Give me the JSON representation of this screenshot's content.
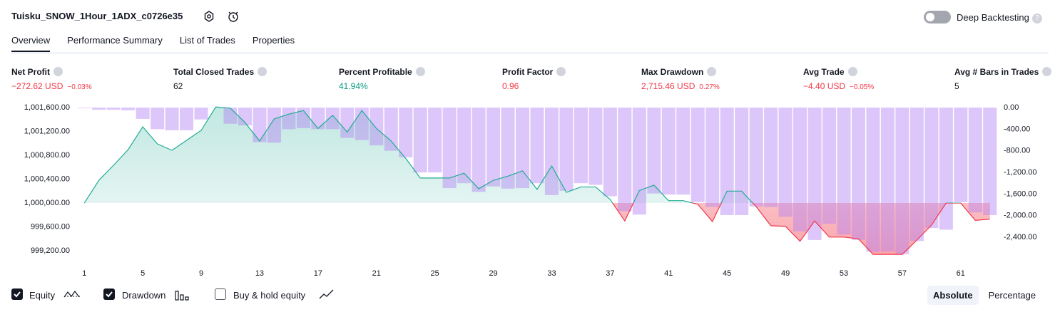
{
  "header": {
    "title": "Tuisku_SNOW_1Hour_1ADX_c0726e35",
    "deep_backtesting": "Deep Backtesting"
  },
  "tabs": [
    "Overview",
    "Performance Summary",
    "List of Trades",
    "Properties"
  ],
  "metrics": [
    {
      "label": "Net Profit",
      "value": "−272.62 USD",
      "change": "−0.03%",
      "color": "#f23645"
    },
    {
      "label": "Total Closed Trades",
      "value": "62",
      "color": "#131722"
    },
    {
      "label": "Percent Profitable",
      "value": "41.94%",
      "color": "#089981"
    },
    {
      "label": "Profit Factor",
      "value": "0.96",
      "color": "#f23645"
    },
    {
      "label": "Max Drawdown",
      "value": "2,715.46 USD",
      "change": "0.27%",
      "color": "#f23645"
    },
    {
      "label": "Avg Trade",
      "value": "−4.40 USD",
      "change": "−0.05%",
      "color": "#f23645"
    },
    {
      "label": "Avg # Bars in Trades",
      "value": "5",
      "color": "#131722"
    }
  ],
  "chart_data": {
    "type": "combo",
    "x": [
      1,
      2,
      3,
      4,
      5,
      6,
      7,
      8,
      9,
      10,
      11,
      12,
      13,
      14,
      15,
      16,
      17,
      18,
      19,
      20,
      21,
      22,
      23,
      24,
      25,
      26,
      27,
      28,
      29,
      30,
      31,
      32,
      33,
      34,
      35,
      36,
      37,
      38,
      39,
      40,
      41,
      42,
      43,
      44,
      45,
      46,
      47,
      48,
      49,
      50,
      51,
      52,
      53,
      54,
      55,
      56,
      57,
      58,
      59,
      60,
      61,
      62,
      63
    ],
    "xlim": [
      0.5,
      63.5
    ],
    "xticks": [
      1,
      5,
      9,
      13,
      17,
      21,
      25,
      29,
      33,
      37,
      41,
      45,
      49,
      53,
      57,
      61
    ],
    "ylim": [
      999010,
      1001600
    ],
    "yticks": [
      {
        "value": 1001600,
        "label": "1,001,600.00"
      },
      {
        "value": 1001200,
        "label": "1,001,200.00"
      },
      {
        "value": 1000800,
        "label": "1,000,800.00"
      },
      {
        "value": 1000400,
        "label": "1,000,400.00"
      },
      {
        "value": 1000000,
        "label": "1,000,000.00"
      },
      {
        "value": 999600,
        "label": "999,600.00"
      },
      {
        "value": 999200,
        "label": "999,200.00"
      }
    ],
    "y2lim": [
      -2860,
      0
    ],
    "y2ticks": [
      {
        "value": 0,
        "label": "0.00"
      },
      {
        "value": -400,
        "label": "-400.00"
      },
      {
        "value": -800,
        "label": "-800.00"
      },
      {
        "value": -1200,
        "label": "-1,200.00"
      },
      {
        "value": -1600,
        "label": "-1,600.00"
      },
      {
        "value": -2000,
        "label": "-2,000.00"
      },
      {
        "value": -2400,
        "label": "-2,400.00"
      }
    ],
    "series": [
      {
        "name": "Equity",
        "type": "area",
        "color": "#22ab94",
        "negative_color": "#f23645",
        "values": [
          1000000,
          1000382,
          1000633,
          1000896,
          1001278,
          1000991,
          1000884,
          1001051,
          1001218,
          1001610,
          1001590,
          1001350,
          1001040,
          1001410,
          1001490,
          1001550,
          1001250,
          1001470,
          1001190,
          1001550,
          1001250,
          1001040,
          1000750,
          1000420,
          1000420,
          1000420,
          1000500,
          1000240,
          1000380,
          1000450,
          1000540,
          1000230,
          1000620,
          1000180,
          1000270,
          1000270,
          1000060,
          999700,
          1000210,
          1000300,
          1000040,
          1000040,
          999980,
          999690,
          1000200,
          1000200,
          999940,
          999620,
          999610,
          999360,
          999700,
          999430,
          999430,
          999400,
          999140,
          999140,
          999140,
          999380,
          999630,
          1000000,
          1000000,
          999710,
          999730
        ]
      },
      {
        "name": "Drawdown",
        "type": "bar",
        "axis": "y2",
        "color": "#b482f5",
        "values": [
          -10,
          -40,
          -40,
          -50,
          -210,
          -400,
          -420,
          -420,
          -220,
          0,
          -300,
          -330,
          -640,
          -650,
          -400,
          -380,
          -400,
          -400,
          -560,
          -600,
          -700,
          -800,
          -920,
          -1200,
          -1200,
          -1490,
          -1400,
          -1560,
          -1460,
          -1500,
          -1490,
          -1400,
          -1620,
          -1540,
          -1400,
          -1430,
          -1640,
          -1920,
          -1980,
          -1590,
          -1610,
          -1610,
          -1750,
          -1840,
          -1990,
          -1990,
          -1830,
          -1840,
          -2020,
          -2290,
          -2450,
          -2150,
          -2350,
          -2450,
          -2670,
          -2660,
          -2710,
          -2470,
          -2230,
          -2260,
          -1750,
          -1940,
          -1990
        ]
      }
    ]
  },
  "footer": {
    "toggles": [
      {
        "label": "Equity",
        "checked": true
      },
      {
        "label": "Drawdown",
        "checked": true
      },
      {
        "label": "Buy & hold equity",
        "checked": false
      }
    ],
    "modes": [
      "Absolute",
      "Percentage"
    ]
  }
}
